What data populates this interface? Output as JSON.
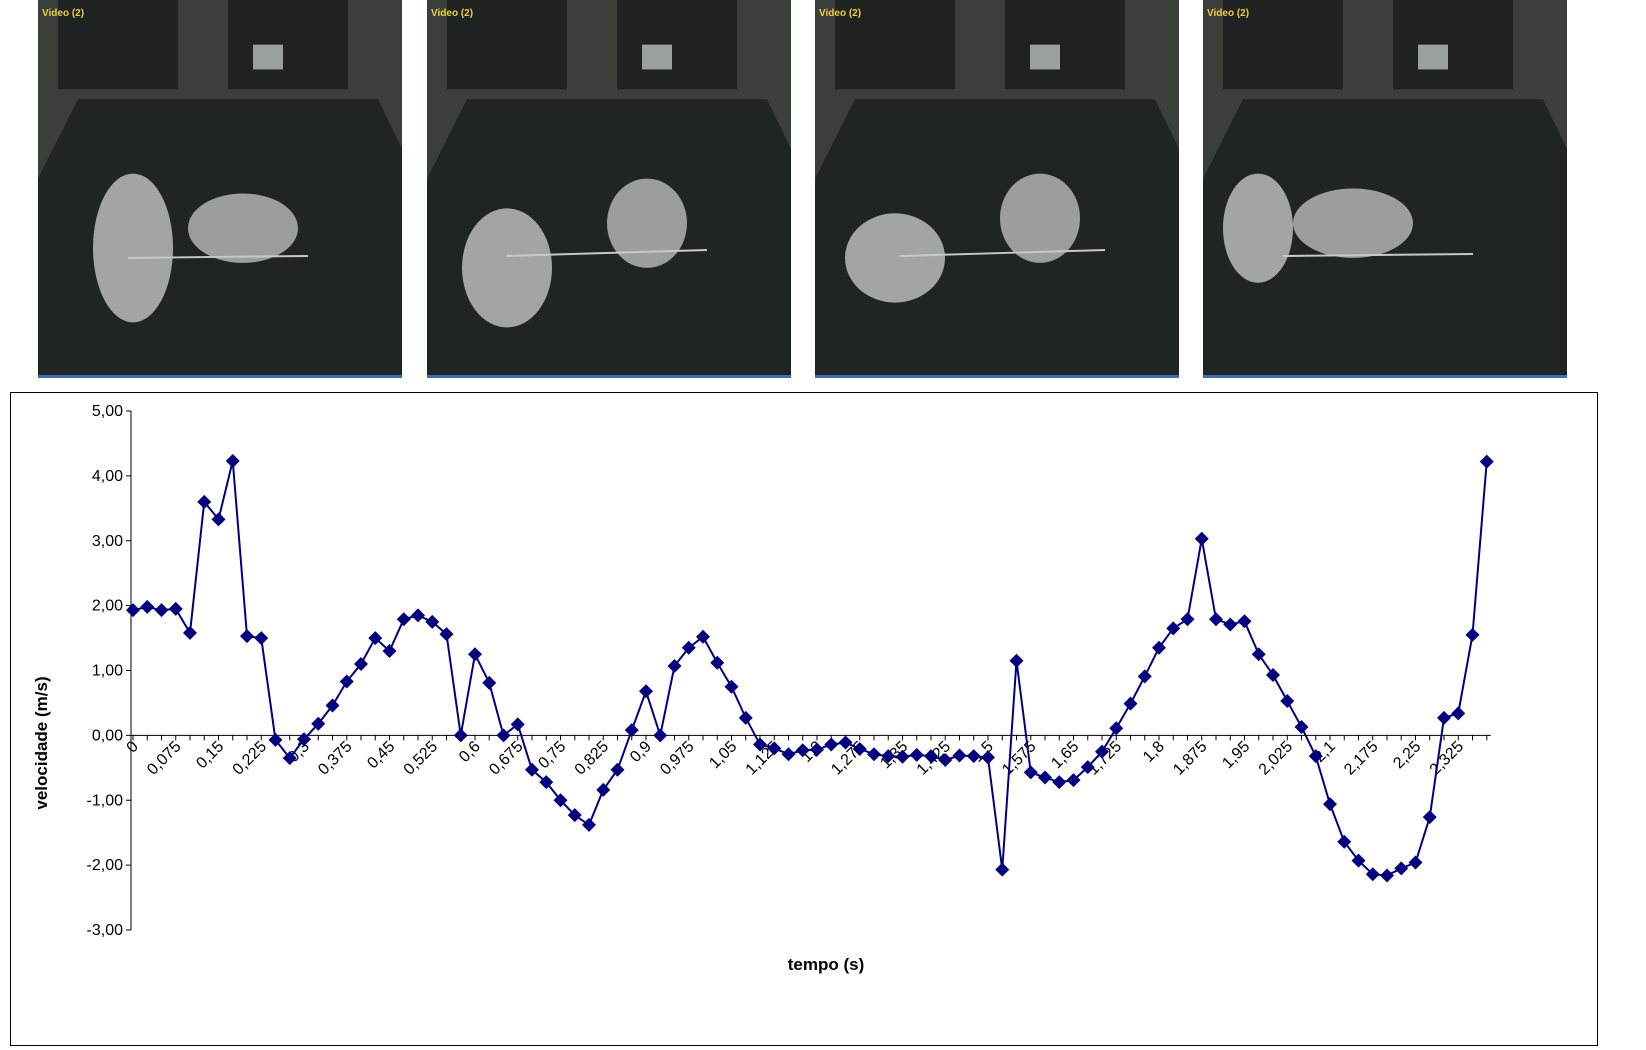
{
  "frames": [
    {
      "label": "Video (2)"
    },
    {
      "label": "Video (2)"
    },
    {
      "label": "Video (2)"
    },
    {
      "label": "Video (2)"
    }
  ],
  "chart_data": {
    "type": "line",
    "xlabel": "tempo (s)",
    "ylabel": "velocidade (m/s)",
    "ylim": [
      -3,
      5
    ],
    "y_ticks": [
      "5,00",
      "4,00",
      "3,00",
      "2,00",
      "1,00",
      "0,00",
      "-1,00",
      "-2,00",
      "-3,00"
    ],
    "x_tick_labels": [
      "0",
      "0,075",
      "0,15",
      "0,225",
      "0,3",
      "0,375",
      "0,45",
      "0,525",
      "0,6",
      "0,675",
      "0,75",
      "0,825",
      "0,9",
      "0,975",
      "1,05",
      "1,125",
      "1,2",
      "1,275",
      "1,35",
      "1,425",
      "1,5",
      "1,575",
      "1,65",
      "1,725",
      "1,8",
      "1,875",
      "1,95",
      "2,025",
      "2,1",
      "2,175",
      "2,25",
      "2,325"
    ],
    "x_step": 0.025,
    "grid": false,
    "marker": "diamond",
    "color": "#000080",
    "series": [
      {
        "values": [
          1.93,
          1.98,
          1.93,
          1.95,
          1.58,
          3.6,
          3.33,
          4.23,
          1.53,
          1.5,
          -0.07,
          -0.35,
          -0.06,
          0.18,
          0.46,
          0.83,
          1.1,
          1.5,
          1.3,
          1.79,
          1.85,
          1.75,
          1.56,
          0.0,
          1.25,
          0.81,
          0.0,
          0.17,
          -0.53,
          -0.72,
          -1.0,
          -1.23,
          -1.38,
          -0.84,
          -0.53,
          0.08,
          0.68,
          0.0,
          1.07,
          1.35,
          1.52,
          1.12,
          0.75,
          0.27,
          -0.14,
          -0.2,
          -0.29,
          -0.23,
          -0.22,
          -0.14,
          -0.11,
          -0.21,
          -0.29,
          -0.32,
          -0.33,
          -0.3,
          -0.32,
          -0.38,
          -0.31,
          -0.32,
          -0.34,
          -2.07,
          1.15,
          -0.57,
          -0.65,
          -0.72,
          -0.69,
          -0.49,
          -0.25,
          0.11,
          0.49,
          0.91,
          1.35,
          1.65,
          1.79,
          3.03,
          1.79,
          1.71,
          1.76,
          1.25,
          0.93,
          0.53,
          0.13,
          -0.32,
          -1.06,
          -1.64,
          -1.93,
          -2.14,
          -2.16,
          -2.05,
          -1.96,
          -1.26,
          0.27,
          0.34,
          1.55,
          4.22
        ]
      }
    ]
  }
}
